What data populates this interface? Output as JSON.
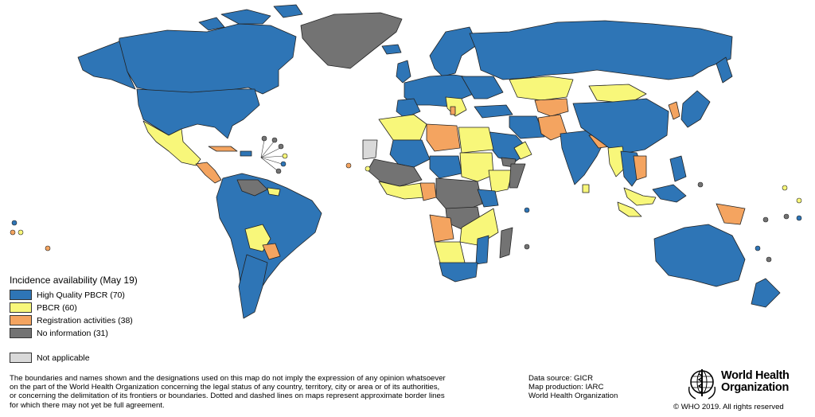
{
  "colors": {
    "high_quality": "#2e75b6",
    "pbcr": "#f8f77a",
    "registration": "#f4a460",
    "no_information": "#737373",
    "not_applicable": "#d9d9d9"
  },
  "legend": {
    "title": "Incidence availability (May 19)",
    "items": [
      {
        "label": "High Quality PBCR (70)",
        "color": "#2e75b6"
      },
      {
        "label": "PBCR (60)",
        "color": "#f8f77a"
      },
      {
        "label": "Registration activities (38)",
        "color": "#f4a460"
      },
      {
        "label": "No information (31)",
        "color": "#737373"
      }
    ],
    "not_applicable": "Not applicable"
  },
  "disclaimer": {
    "line1": "The boundaries and names shown and the designations used on this map do not imply the expression of any opinion whatsoever",
    "line2": "on the part of the World Health Organization concerning the legal status of any country, territory, city or area or of its authorities,",
    "line3": "or concerning the delimitation of its frontiers or boundaries. Dotted and dashed lines on maps represent approximate border lines",
    "line4": "for which there may not yet be full agreement."
  },
  "source": {
    "data_source": "Data source: GICR",
    "map_production": "Map production: IARC",
    "organization": "World Health Organization"
  },
  "logo": {
    "name_line1": "World Health",
    "name_line2": "Organization"
  },
  "copyright": "© WHO 2019. All rights reserved"
}
